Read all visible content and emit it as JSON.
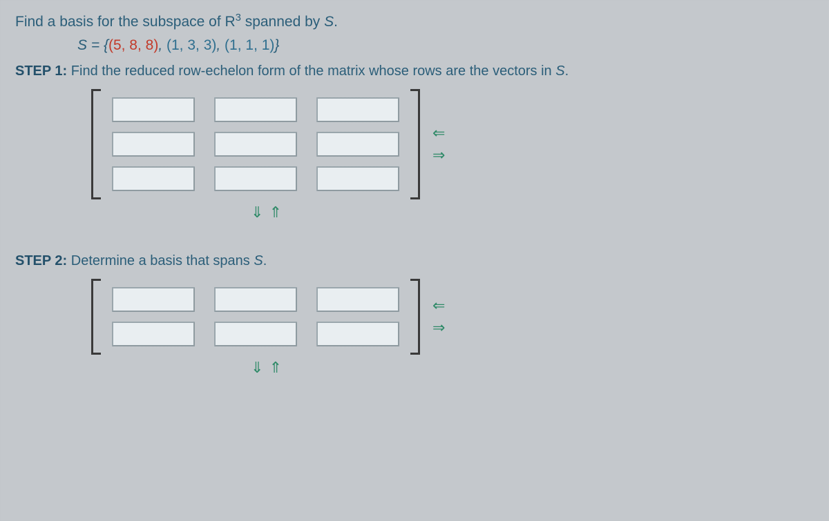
{
  "prompt_prefix": "Find a basis for the subspace of ",
  "space_symbol": "R",
  "space_exp": "3",
  "prompt_suffix": " spanned by ",
  "S_var": "S",
  "period": ".",
  "set_eq": "S = {",
  "vec1": "(5, 8, 8)",
  "comma1": ", ",
  "vec2": "(1, 3, 3)",
  "comma2": ", ",
  "vec3": "(1, 1, 1)",
  "set_close": "}",
  "step1_label": "STEP 1:",
  "step1_text": "Find the reduced row-echelon form of the matrix whose rows are the vectors in ",
  "step1_tail": ".",
  "step2_label": "STEP 2:",
  "step2_text": "Determine a basis that spans ",
  "step2_tail": ".",
  "matrix1": {
    "rows": 3,
    "cols": 3
  },
  "matrix2": {
    "rows": 2,
    "cols": 3
  },
  "colors": {
    "text": "#2b5e79",
    "vec_red": "#c23a2a",
    "vec_blue": "#2f6f8f",
    "arrow_green": "#2f8a68",
    "cell_bg": "#e9eef1",
    "cell_border": "#8f9ba1",
    "bracket": "#3a3a3a",
    "page_bg": "#c8ccd0"
  },
  "icons": {
    "arrow_left": "⇐",
    "arrow_right": "⇒",
    "arrow_down": "⇓",
    "arrow_up": "⇑"
  }
}
